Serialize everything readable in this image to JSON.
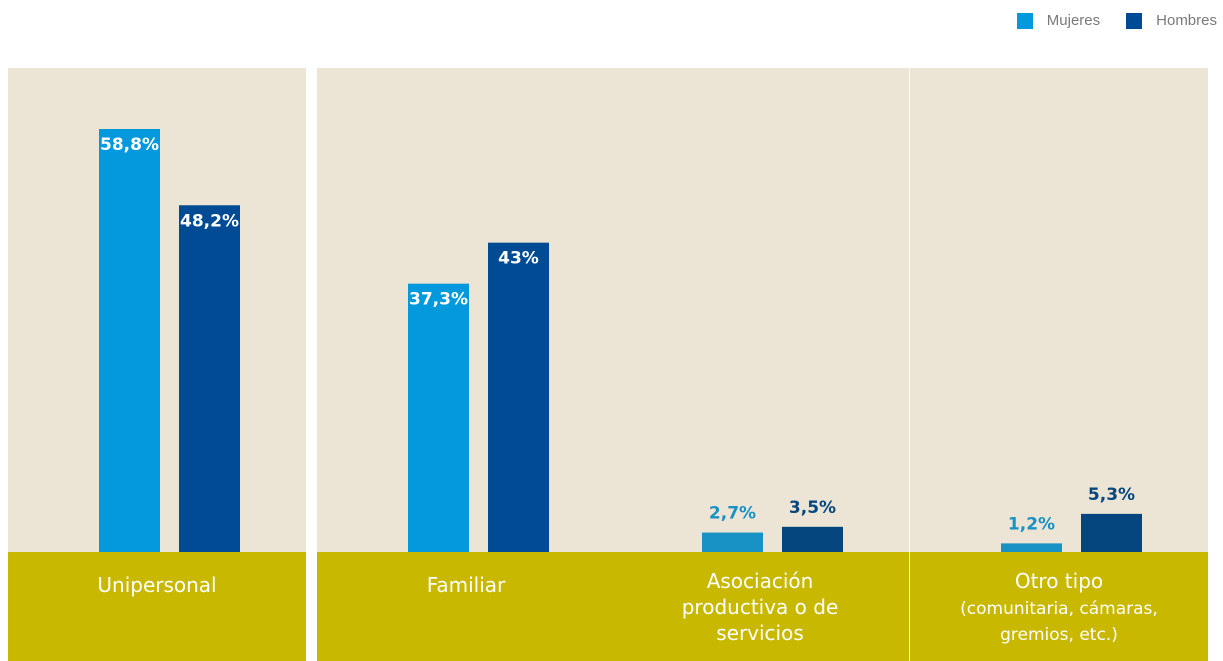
{
  "legend": {
    "items": [
      {
        "label": "Mujeres",
        "color": "#0399dc"
      },
      {
        "label": "Hombres",
        "color": "#014b94"
      }
    ]
  },
  "colors": {
    "panel": "#ece4d4",
    "category_band": "#c9b800",
    "mujeres": "#0399dc",
    "hombres": "#014b94",
    "small_mujeres": "#1891c5",
    "small_hombres": "#05467e",
    "label_light": "#ffffff"
  },
  "chart_data": {
    "type": "bar",
    "categories": [
      [
        "Unipersonal"
      ],
      [
        "Familiar"
      ],
      [
        "Asociación",
        "productiva o de",
        "servicios"
      ],
      [
        "Otro tipo",
        "(comunitaria, cámaras,",
        "gremios, etc.)"
      ]
    ],
    "series": [
      {
        "name": "Mujeres",
        "values": [
          58.8,
          37.3,
          2.7,
          1.2
        ],
        "labels": [
          "58,8%",
          "37,3%",
          "2,7%",
          "1,2%"
        ]
      },
      {
        "name": "Hombres",
        "values": [
          48.2,
          43.0,
          3.5,
          5.3
        ],
        "labels": [
          "48,2%",
          "43%",
          "3,5%",
          "5,3%"
        ]
      }
    ],
    "ylim": [
      0,
      65
    ],
    "xlabel": "",
    "ylabel": "",
    "legend_position": "top-right",
    "grid": false
  }
}
